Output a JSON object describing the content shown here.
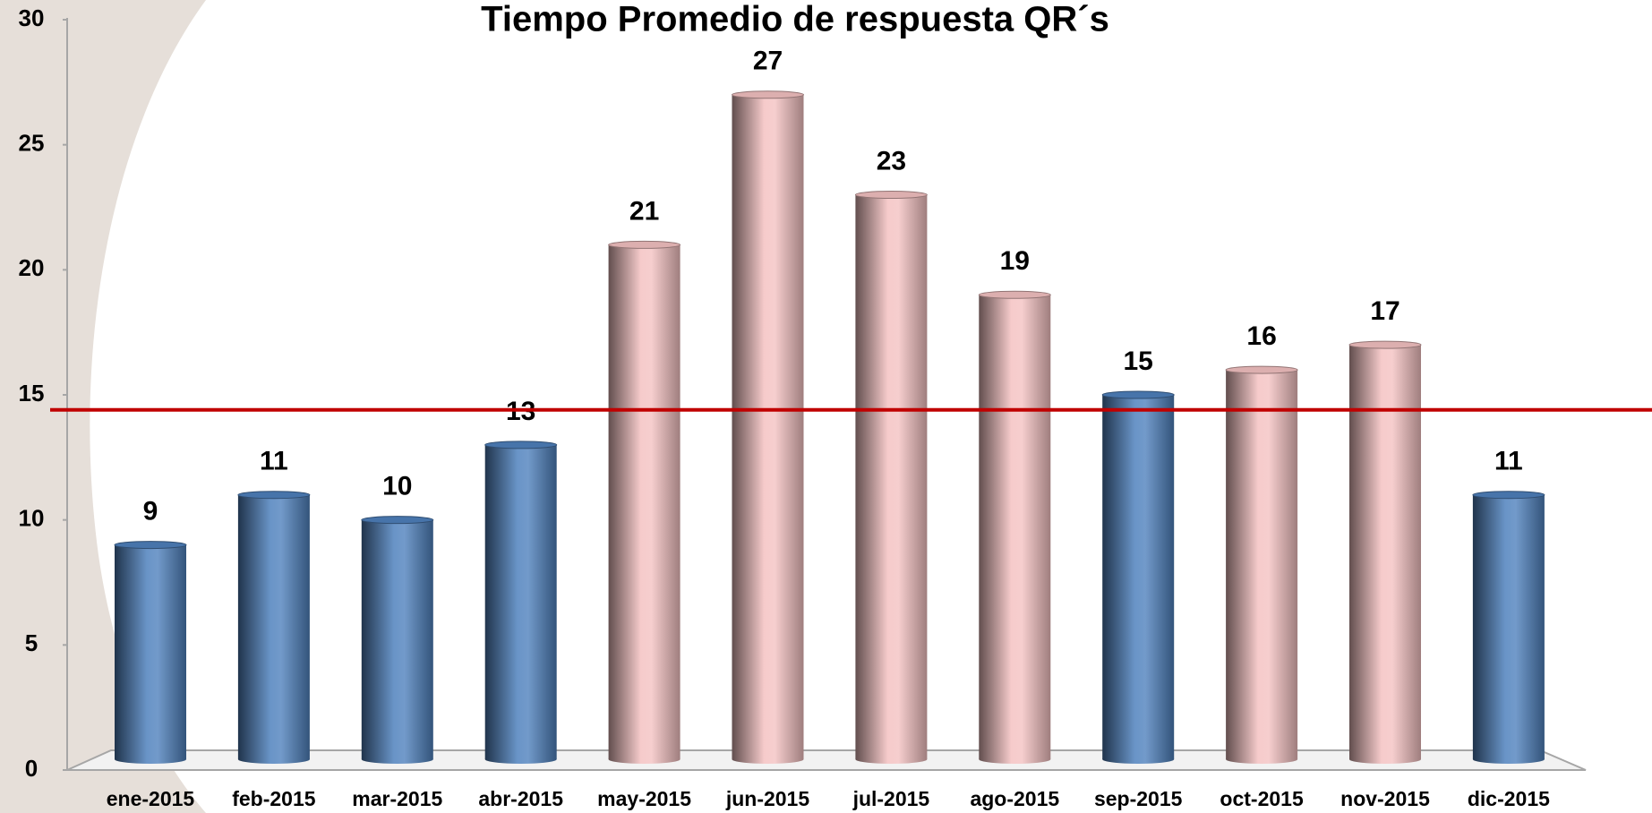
{
  "chart_data": {
    "type": "bar",
    "title": "Tiempo Promedio de respuesta  QR´s",
    "categories": [
      "ene-2015",
      "feb-2015",
      "mar-2015",
      "abr-2015",
      "may-2015",
      "jun-2015",
      "jul-2015",
      "ago-2015",
      "sep-2015",
      "oct-2015",
      "nov-2015",
      "dic-2015"
    ],
    "values": [
      9,
      11,
      10,
      13,
      21,
      27,
      23,
      19,
      15,
      16,
      17,
      11
    ],
    "colors": [
      "#4f81bd",
      "#4f81bd",
      "#4f81bd",
      "#4f81bd",
      "#f4c2c2",
      "#f4c2c2",
      "#f4c2c2",
      "#f4c2c2",
      "#4f81bd",
      "#f4c2c2",
      "#f4c2c2",
      "#4f81bd"
    ],
    "ylim": [
      0,
      30
    ],
    "yticks": [
      0,
      5,
      10,
      15,
      20,
      25,
      30
    ],
    "reference_line": {
      "value": 14.4,
      "color": "#c00000"
    }
  }
}
